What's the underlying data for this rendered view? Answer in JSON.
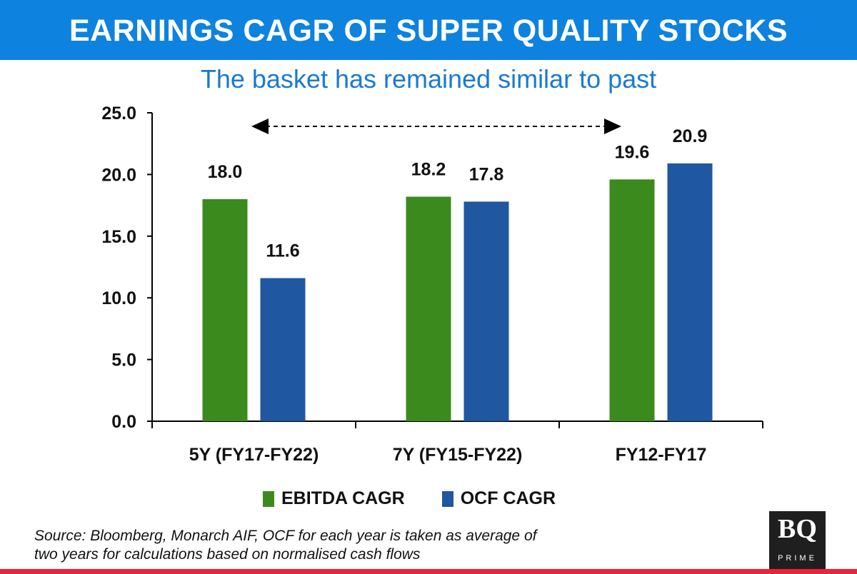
{
  "header": {
    "title": "EARNINGS CAGR OF SUPER QUALITY STOCKS"
  },
  "subtitle": "The basket has remained similar to past",
  "chart_data": {
    "type": "bar",
    "categories": [
      "5Y (FY17-FY22)",
      "7Y (FY15-FY22)",
      "FY12-FY17"
    ],
    "series": [
      {
        "name": "EBITDA CAGR",
        "values": [
          18.0,
          18.2,
          19.6
        ],
        "color": "#3b8a1e"
      },
      {
        "name": "OCF CAGR",
        "values": [
          11.6,
          17.8,
          20.9
        ],
        "color": "#1f57a0"
      }
    ],
    "yticks": [
      "0.0",
      "5.0",
      "10.0",
      "15.0",
      "20.0",
      "25.0"
    ],
    "ylim": [
      0,
      25
    ],
    "grid": false,
    "legend": "bottom",
    "annotation": "double-headed dashed arrow spanning from first to third category"
  },
  "legend": {
    "items": [
      "EBITDA CAGR",
      "OCF CAGR"
    ]
  },
  "source": {
    "line1": "Source: Bloomberg, Monarch AIF, OCF for each year is taken as average of",
    "line2": "two years for calculations based on normalised cash flows"
  },
  "logo": {
    "text": "BQ",
    "sub": "PRIME"
  },
  "colors": {
    "header": "#0e82df",
    "subtitle": "#1a7ad1",
    "bottom_bar": "#e8243f"
  }
}
